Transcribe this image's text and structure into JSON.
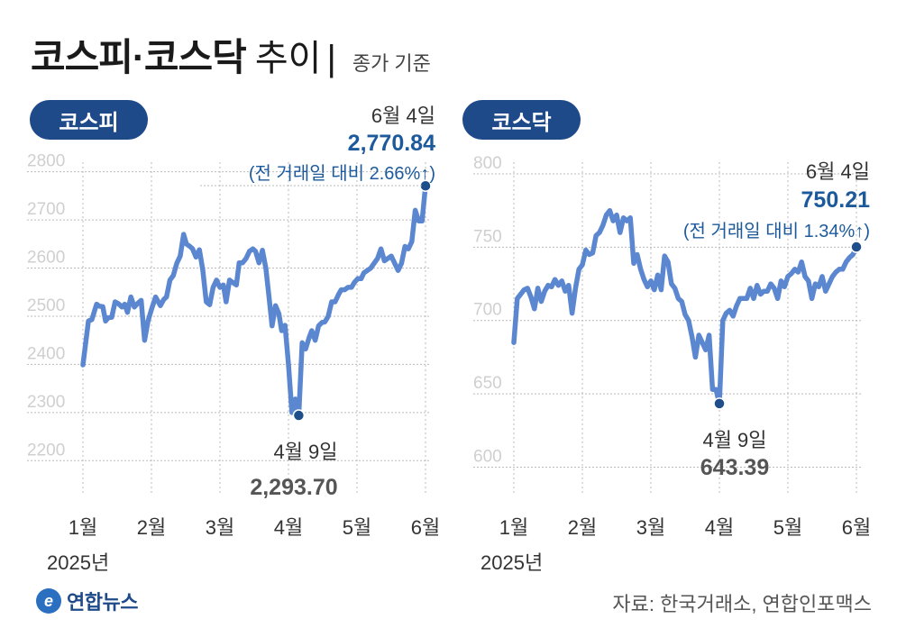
{
  "header": {
    "title_main": "코스피·코스닥",
    "title_suffix": "추이",
    "title_bar": "|",
    "title_note": "종가 기준"
  },
  "colors": {
    "line": "#5b86d0",
    "accent_blue": "#1c5a9c",
    "pill_bg": "#1f4a8a",
    "grid": "#bbbbbb",
    "marker": "#1e4f8a"
  },
  "x_axis": {
    "months": [
      "1월",
      "2월",
      "3월",
      "4월",
      "5월",
      "6월"
    ],
    "year": "2025년"
  },
  "footer": {
    "logo_mark": "e",
    "logo_text": "연합뉴스",
    "source": "자료: 한국거래소, 연합인포맥스"
  },
  "chart_data": [
    {
      "name": "코스피",
      "type": "line",
      "x_unit": "month (1=1월 start)",
      "y_ticks": [
        "2200",
        "2300",
        "2400",
        "2500",
        "2600",
        "2700",
        "2800"
      ],
      "ylim": [
        2150,
        2820
      ],
      "grid": true,
      "x": [
        1.0,
        1.08,
        1.13,
        1.2,
        1.24,
        1.29,
        1.33,
        1.37,
        1.42,
        1.47,
        1.52,
        1.57,
        1.61,
        1.65,
        1.7,
        1.75,
        1.8,
        1.85,
        1.9,
        1.95,
        2.0,
        2.06,
        2.13,
        2.18,
        2.22,
        2.27,
        2.32,
        2.37,
        2.42,
        2.47,
        2.51,
        2.56,
        2.6,
        2.65,
        2.7,
        2.75,
        2.8,
        2.85,
        2.9,
        2.95,
        3.0,
        3.05,
        3.09,
        3.14,
        3.19,
        3.24,
        3.28,
        3.33,
        3.38,
        3.43,
        3.48,
        3.52,
        3.57,
        3.62,
        3.67,
        3.72,
        3.76,
        3.81,
        3.86,
        3.9,
        3.95,
        4.0,
        4.05,
        4.1,
        4.15,
        4.2,
        4.25,
        4.3,
        4.34,
        4.39,
        4.44,
        4.49,
        4.53,
        4.58,
        4.63,
        4.68,
        4.73,
        4.77,
        4.82,
        4.87,
        4.92,
        4.96,
        5.01,
        5.06,
        5.1,
        5.15,
        5.2,
        5.25,
        5.3,
        5.35,
        5.4,
        5.45,
        5.5,
        5.55,
        5.6,
        5.65,
        5.7,
        5.75,
        5.8,
        5.85,
        5.9,
        5.95,
        6.0
      ],
      "values": [
        2399,
        2490,
        2493,
        2525,
        2521,
        2520,
        2490,
        2497,
        2498,
        2530,
        2526,
        2519,
        2525,
        2508,
        2540,
        2519,
        2527,
        2533,
        2450,
        2490,
        2514,
        2540,
        2522,
        2535,
        2540,
        2575,
        2585,
        2610,
        2625,
        2670,
        2650,
        2645,
        2640,
        2623,
        2638,
        2595,
        2530,
        2524,
        2560,
        2575,
        2560,
        2565,
        2530,
        2575,
        2570,
        2565,
        2611,
        2611,
        2620,
        2635,
        2640,
        2635,
        2611,
        2637,
        2600,
        2535,
        2480,
        2522,
        2505,
        2470,
        2481,
        2400,
        2300,
        2328,
        2294,
        2445,
        2432,
        2455,
        2470,
        2450,
        2480,
        2487,
        2488,
        2500,
        2530,
        2530,
        2545,
        2555,
        2555,
        2560,
        2560,
        2570,
        2578,
        2578,
        2590,
        2595,
        2600,
        2610,
        2620,
        2640,
        2615,
        2620,
        2625,
        2610,
        2595,
        2610,
        2645,
        2640,
        2655,
        2720,
        2698,
        2698,
        2770.84
      ],
      "annotations": [
        {
          "label": "6월 4일",
          "value": "2,770.84",
          "change": "(전 거래일 대비 2.66%↑)"
        },
        {
          "label": "4월 9일",
          "value": "2,293.70"
        }
      ]
    },
    {
      "name": "코스닥",
      "type": "line",
      "x_unit": "month (1=1월 start)",
      "y_ticks": [
        "600",
        "650",
        "700",
        "750",
        "800"
      ],
      "ylim": [
        588,
        808
      ],
      "grid": true,
      "x": [
        1.0,
        1.05,
        1.1,
        1.15,
        1.2,
        1.25,
        1.3,
        1.35,
        1.4,
        1.45,
        1.5,
        1.55,
        1.6,
        1.65,
        1.7,
        1.75,
        1.8,
        1.85,
        1.9,
        1.95,
        2.0,
        2.05,
        2.1,
        2.15,
        2.2,
        2.25,
        2.3,
        2.35,
        2.4,
        2.45,
        2.5,
        2.55,
        2.6,
        2.65,
        2.7,
        2.75,
        2.8,
        2.85,
        2.9,
        2.95,
        3.0,
        3.05,
        3.1,
        3.15,
        3.2,
        3.25,
        3.3,
        3.35,
        3.4,
        3.45,
        3.5,
        3.55,
        3.6,
        3.65,
        3.7,
        3.75,
        3.8,
        3.85,
        3.9,
        3.95,
        4.0,
        4.05,
        4.1,
        4.15,
        4.2,
        4.25,
        4.3,
        4.35,
        4.4,
        4.45,
        4.5,
        4.55,
        4.6,
        4.65,
        4.7,
        4.75,
        4.8,
        4.85,
        4.9,
        4.95,
        5.0,
        5.05,
        5.1,
        5.15,
        5.2,
        5.25,
        5.3,
        5.35,
        5.4,
        5.45,
        5.5,
        5.55,
        5.6,
        5.65,
        5.7,
        5.75,
        5.8,
        5.85,
        5.9,
        5.95,
        6.0
      ],
      "values": [
        685,
        715,
        718,
        721,
        722,
        716,
        708,
        722,
        713,
        720,
        724,
        723,
        728,
        724,
        727,
        720,
        724,
        705,
        722,
        735,
        738,
        748,
        745,
        746,
        758,
        760,
        765,
        772,
        775,
        768,
        772,
        760,
        770,
        768,
        770,
        739,
        745,
        735,
        728,
        723,
        727,
        721,
        731,
        721,
        744,
        740,
        725,
        722,
        715,
        713,
        704,
        700,
        689,
        675,
        690,
        685,
        680,
        690,
        653,
        653,
        643.39,
        700,
        705,
        707,
        703,
        710,
        715,
        715,
        715,
        722,
        715,
        724,
        718,
        720,
        720,
        725,
        722,
        715,
        727,
        723,
        730,
        732,
        735,
        733,
        740,
        730,
        727,
        715,
        725,
        723,
        730,
        720,
        725,
        730,
        733,
        735,
        735,
        740,
        743,
        745,
        750.21
      ],
      "annotations": [
        {
          "label": "6월 4일",
          "value": "750.21",
          "change": "(전 거래일 대비 1.34%↑)"
        },
        {
          "label": "4월 9일",
          "value": "643.39"
        }
      ]
    }
  ]
}
